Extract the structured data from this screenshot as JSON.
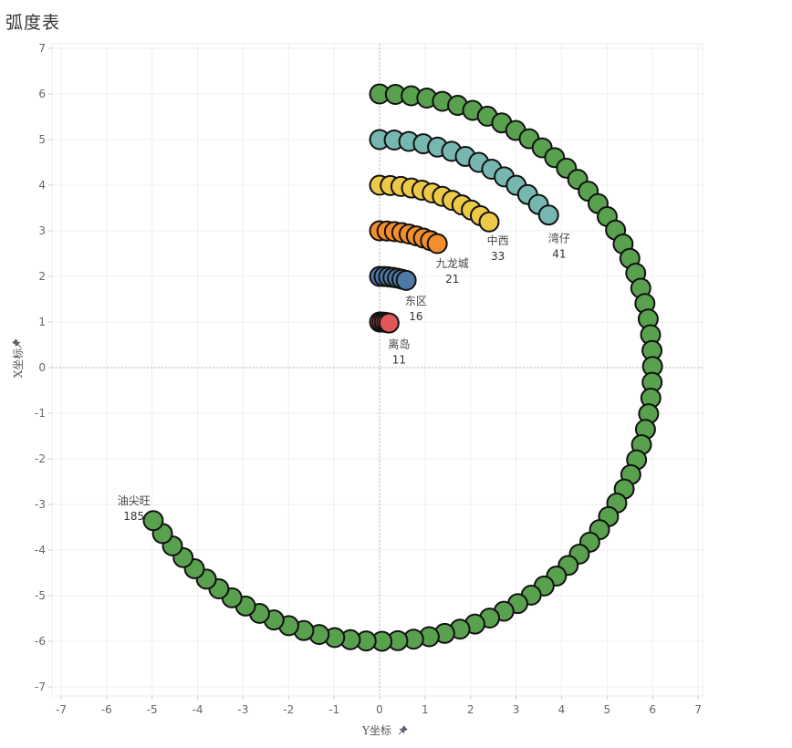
{
  "page": {
    "title": "弧度表"
  },
  "chart_data": {
    "type": "scatter",
    "title": "弧度表",
    "xlabel": "Y坐标",
    "ylabel": "X坐标",
    "xlim": [
      -7.2,
      7.1
    ],
    "ylim": [
      -7.2,
      7.1
    ],
    "xticks": [
      -7,
      -6,
      -5,
      -4,
      -3,
      -2,
      -1,
      0,
      1,
      2,
      3,
      4,
      5,
      6,
      7
    ],
    "yticks": [
      7,
      6,
      5,
      4,
      3,
      2,
      1,
      0,
      -1,
      -2,
      -3,
      -4,
      -5,
      -6,
      -7
    ],
    "grid": true,
    "reference_lines": {
      "x": 0,
      "y": 0
    },
    "marker": {
      "radius_data": 0.21,
      "stroke": "#111111"
    },
    "series": [
      {
        "name": "油尖旺",
        "value": 185,
        "label_value": "185",
        "radius": 6,
        "color": "#59a14f",
        "theta_start_deg": 0,
        "theta_end_deg": 236,
        "points": 72,
        "label_anchor": [
          -5.4,
          -3.0
        ]
      },
      {
        "name": "湾仔",
        "value": 41,
        "label_value": "41",
        "radius": 5,
        "color": "#76b7b2",
        "theta_start_deg": 0,
        "theta_end_deg": 48,
        "points": 14,
        "label_anchor": [
          3.95,
          2.75
        ]
      },
      {
        "name": "中西",
        "value": 33,
        "label_value": "33",
        "radius": 4,
        "color": "#edc948",
        "theta_start_deg": 0,
        "theta_end_deg": 37,
        "points": 12,
        "label_anchor": [
          2.6,
          2.7
        ]
      },
      {
        "name": "九龙城",
        "value": 21,
        "label_value": "21",
        "radius": 3,
        "color": "#f28e2b",
        "theta_start_deg": 0,
        "theta_end_deg": 25,
        "points": 9,
        "label_anchor": [
          1.6,
          2.2
        ]
      },
      {
        "name": "东区",
        "value": 16,
        "label_value": "16",
        "radius": 2,
        "color": "#4e79a7",
        "theta_start_deg": 0,
        "theta_end_deg": 17,
        "points": 7,
        "label_anchor": [
          0.8,
          1.38
        ]
      },
      {
        "name": "离岛",
        "value": 11,
        "label_value": "11",
        "radius": 1,
        "color": "#e15759",
        "theta_start_deg": 0,
        "theta_end_deg": 12,
        "points": 5,
        "label_anchor": [
          0.43,
          0.43
        ]
      }
    ]
  }
}
